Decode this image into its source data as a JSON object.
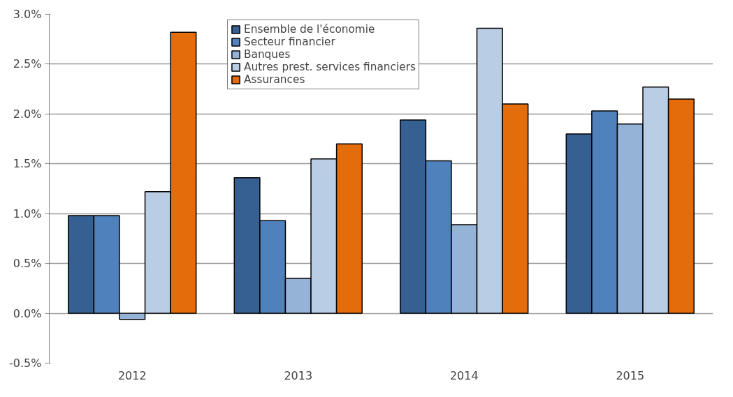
{
  "chart_data": {
    "type": "bar",
    "categories": [
      "2012",
      "2013",
      "2014",
      "2015"
    ],
    "series": [
      {
        "name": "Ensemble de l'économie",
        "color": "#376092",
        "values": [
          0.98,
          1.36,
          1.94,
          1.8
        ]
      },
      {
        "name": "Secteur financier",
        "color": "#4f81bd",
        "values": [
          0.98,
          0.93,
          1.53,
          2.03
        ]
      },
      {
        "name": "Banques",
        "color": "#95b3d7",
        "values": [
          -0.06,
          0.35,
          0.89,
          1.9
        ]
      },
      {
        "name": "Autres prest. services financiers",
        "color": "#b9cde5",
        "values": [
          1.22,
          1.55,
          2.86,
          2.27
        ]
      },
      {
        "name": "Assurances",
        "color": "#e46c0a",
        "values": [
          2.82,
          1.7,
          2.1,
          2.15
        ]
      }
    ],
    "ylim": [
      -0.5,
      3.0
    ],
    "yticks": [
      {
        "value": -0.5,
        "label": "-0.5%"
      },
      {
        "value": 0.0,
        "label": "0.0%"
      },
      {
        "value": 0.5,
        "label": "0.5%"
      },
      {
        "value": 1.0,
        "label": "1.0%"
      },
      {
        "value": 1.5,
        "label": "1.5%"
      },
      {
        "value": 2.0,
        "label": "2.0%"
      },
      {
        "value": 2.5,
        "label": "2.5%"
      },
      {
        "value": 3.0,
        "label": "3.0%"
      }
    ],
    "grid": "y",
    "legend": "top"
  }
}
